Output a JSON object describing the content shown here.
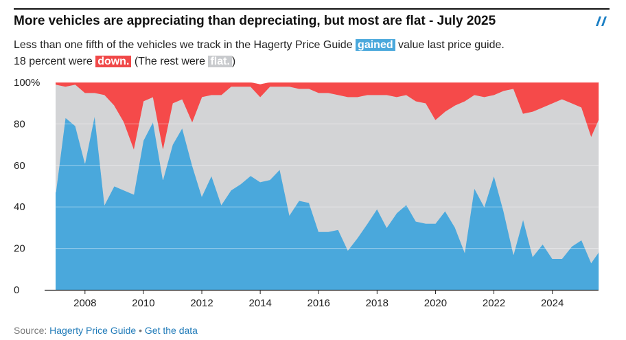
{
  "header": {
    "title": "More vehicles are appreciating than depreciating, but most are flat - July 2025",
    "logo_icon": "datawrapper-logo-icon"
  },
  "subtitle": {
    "part1": "Less than one fifth of the vehicles we track in the Hagerty Price Guide ",
    "gained": "gained",
    "part2": " value last price guide.",
    "part3": "18 percent were ",
    "down": "down.",
    "part4": " (The rest were ",
    "flat": "flat.",
    "part5": ")"
  },
  "footer": {
    "source_label": "Source: ",
    "source_link": "Hagerty Price Guide",
    "separator": " • ",
    "data_link": "Get the data"
  },
  "colors": {
    "gained": "#4aa8dc",
    "flat": "#d3d4d6",
    "down": "#f54a4a"
  },
  "chart_data": {
    "type": "area",
    "stacked": true,
    "title": "More vehicles are appreciating than depreciating, but most are flat - July 2025",
    "xlim": [
      2006.9,
      2025.7
    ],
    "ylim": [
      0,
      100
    ],
    "y_ticks": [
      0,
      20,
      40,
      60,
      80,
      100
    ],
    "y_tick_labels": [
      "0",
      "20",
      "40",
      "60",
      "80",
      "100%"
    ],
    "x_ticks": [
      2008,
      2010,
      2012,
      2014,
      2016,
      2018,
      2020,
      2022,
      2024
    ],
    "x_tick_labels": [
      "2008",
      "2010",
      "2012",
      "2014",
      "2016",
      "2018",
      "2020",
      "2022",
      "2024"
    ],
    "x": [
      2007.0,
      2007.33,
      2007.67,
      2008.0,
      2008.33,
      2008.67,
      2009.0,
      2009.33,
      2009.67,
      2010.0,
      2010.33,
      2010.67,
      2011.0,
      2011.33,
      2011.67,
      2012.0,
      2012.33,
      2012.67,
      2013.0,
      2013.33,
      2013.67,
      2014.0,
      2014.33,
      2014.67,
      2015.0,
      2015.33,
      2015.67,
      2016.0,
      2016.33,
      2016.67,
      2017.0,
      2017.33,
      2017.67,
      2018.0,
      2018.33,
      2018.67,
      2019.0,
      2019.33,
      2019.67,
      2020.0,
      2020.33,
      2020.67,
      2021.0,
      2021.33,
      2021.67,
      2022.0,
      2022.33,
      2022.67,
      2023.0,
      2023.33,
      2023.67,
      2024.0,
      2024.33,
      2024.67,
      2025.0,
      2025.33,
      2025.58
    ],
    "series": [
      {
        "name": "gained",
        "values": [
          47,
          83,
          79,
          61,
          84,
          41,
          50,
          48,
          46,
          72,
          81,
          53,
          70,
          78,
          60,
          45,
          55,
          41,
          48,
          51,
          55,
          52,
          53,
          58,
          36,
          43,
          42,
          28,
          28,
          29,
          19,
          25,
          32,
          39,
          30,
          37,
          41,
          33,
          32,
          32,
          38,
          30,
          18,
          49,
          40,
          55,
          38,
          17,
          34,
          16,
          22,
          15,
          15,
          21,
          24,
          13,
          18
        ]
      },
      {
        "name": "flat",
        "values": [
          52,
          15,
          20,
          34,
          11,
          53,
          39,
          33,
          22,
          19,
          12,
          15,
          20,
          14,
          21,
          48,
          39,
          53,
          50,
          47,
          43,
          41,
          45,
          40,
          62,
          54,
          55,
          67,
          67,
          65,
          74,
          68,
          62,
          55,
          64,
          56,
          53,
          58,
          58,
          50,
          48,
          59,
          73,
          45,
          53,
          39,
          58,
          80,
          51,
          70,
          66,
          75,
          77,
          69,
          64,
          61,
          64
        ]
      },
      {
        "name": "down",
        "values": [
          1,
          2,
          1,
          5,
          5,
          6,
          11,
          19,
          32,
          9,
          7,
          32,
          10,
          8,
          19,
          7,
          6,
          6,
          2,
          2,
          2,
          6,
          2,
          2,
          2,
          3,
          3,
          5,
          5,
          6,
          7,
          7,
          6,
          6,
          6,
          7,
          6,
          9,
          10,
          18,
          14,
          11,
          9,
          6,
          7,
          6,
          4,
          3,
          15,
          14,
          12,
          10,
          8,
          10,
          12,
          26,
          18
        ]
      }
    ]
  }
}
